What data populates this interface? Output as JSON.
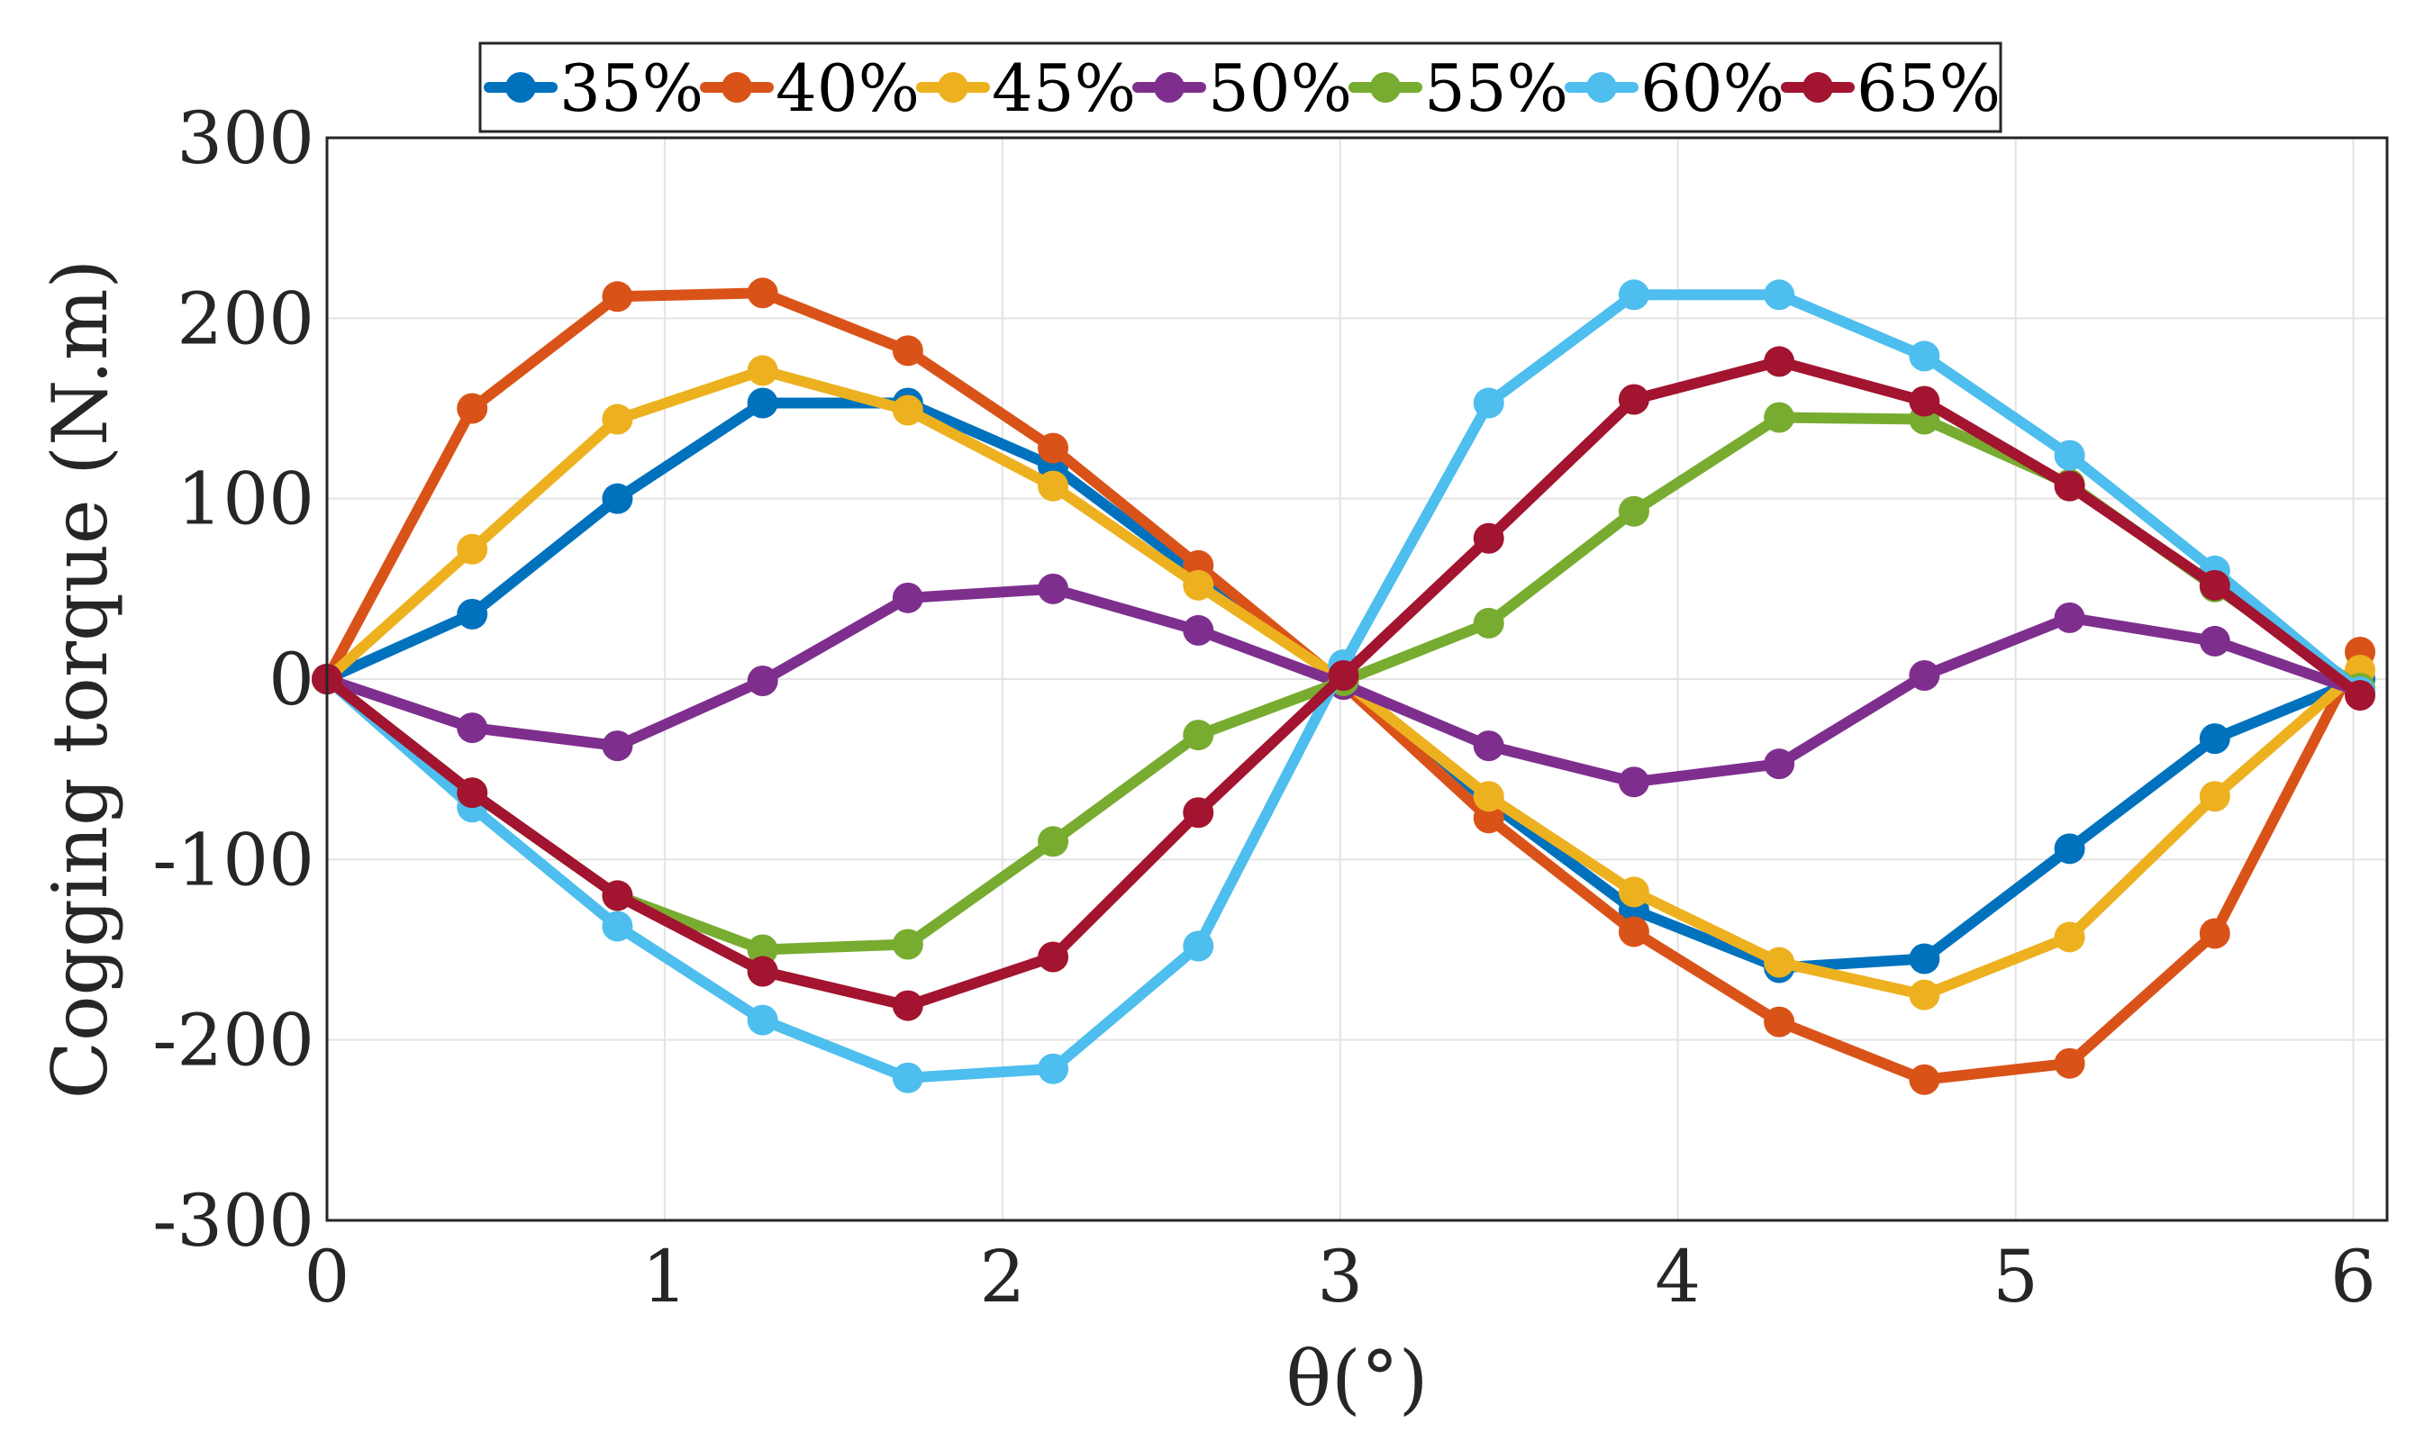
{
  "chart_data": {
    "type": "line",
    "xlabel": "θ(°)",
    "ylabel": "Cogging torque (N.m)",
    "xlim": [
      0,
      6.1
    ],
    "ylim": [
      -300,
      300
    ],
    "xticks": [
      0,
      1,
      2,
      3,
      4,
      5,
      6
    ],
    "yticks": [
      -300,
      -200,
      -100,
      0,
      100,
      200,
      300
    ],
    "grid": true,
    "legend_position": "top",
    "x": [
      0,
      0.43,
      0.86,
      1.29,
      1.72,
      2.15,
      2.58,
      3.01,
      3.44,
      3.87,
      4.3,
      4.73,
      5.16,
      5.59,
      6.02
    ],
    "series": [
      {
        "name": "35%",
        "color": "#0072bd",
        "values": [
          0,
          36,
          100,
          153,
          153,
          118,
          58,
          -2,
          -68,
          -128,
          -160,
          -155,
          -94,
          -33,
          0
        ]
      },
      {
        "name": "40%",
        "color": "#d95319",
        "values": [
          0,
          150,
          212,
          214,
          182,
          128,
          63,
          -3,
          -77,
          -140,
          -190,
          -222,
          -213,
          -141,
          15
        ]
      },
      {
        "name": "45%",
        "color": "#edb120",
        "values": [
          0,
          72,
          144,
          171,
          149,
          107,
          52,
          -1,
          -65,
          -118,
          -157,
          -175,
          -143,
          -65,
          5
        ]
      },
      {
        "name": "50%",
        "color": "#7e2f8e",
        "values": [
          0,
          -27,
          -37,
          -1,
          45,
          50,
          27,
          -3,
          -37,
          -57,
          -47,
          2,
          34,
          21,
          -7
        ]
      },
      {
        "name": "55%",
        "color": "#77ac30",
        "values": [
          0,
          -63,
          -120,
          -150,
          -147,
          -90,
          -31,
          -1,
          31,
          93,
          145,
          144,
          108,
          51,
          -5
        ]
      },
      {
        "name": "60%",
        "color": "#4dbeee",
        "values": [
          0,
          -71,
          -137,
          -189,
          -221,
          -216,
          -148,
          8,
          153,
          213,
          213,
          179,
          124,
          60,
          -7
        ]
      },
      {
        "name": "65%",
        "color": "#a2142f",
        "values": [
          0,
          -63,
          -120,
          -162,
          -181,
          -154,
          -74,
          2,
          78,
          155,
          176,
          154,
          107,
          52,
          -9
        ]
      }
    ]
  }
}
